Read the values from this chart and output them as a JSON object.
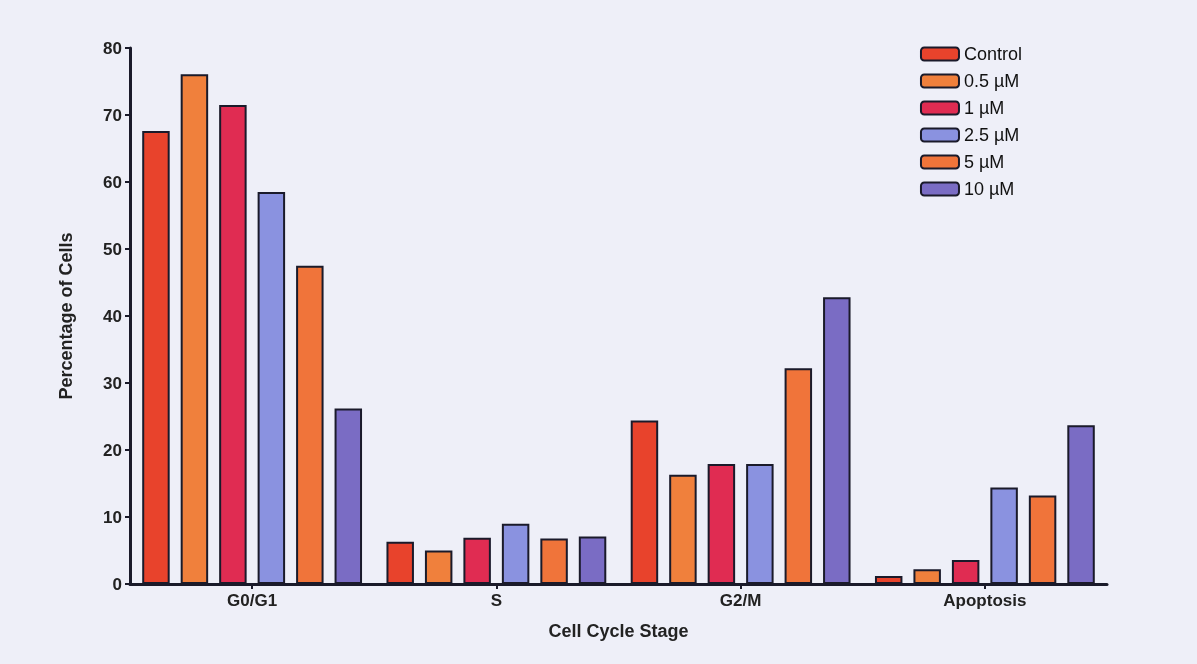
{
  "chart_data": {
    "type": "bar",
    "xlabel": "Cell Cycle Stage",
    "ylabel": "Percentage of Cells",
    "categories": [
      "G0/G1",
      "S",
      "G2/M",
      "Apoptosis"
    ],
    "series": [
      {
        "name": "Control",
        "color": "#e8432c",
        "values": [
          67.6,
          6.3,
          24.4,
          1.2
        ]
      },
      {
        "name": "0.5 µM",
        "color": "#f0803c",
        "values": [
          76.1,
          5.0,
          16.3,
          2.2
        ]
      },
      {
        "name": "1 µM",
        "color": "#e02c52",
        "values": [
          71.5,
          6.9,
          17.9,
          3.6
        ]
      },
      {
        "name": "2.5 µM",
        "color": "#8a92e0",
        "values": [
          58.5,
          9.0,
          17.9,
          14.4
        ]
      },
      {
        "name": "5 µM",
        "color": "#f0743a",
        "values": [
          47.5,
          6.8,
          32.2,
          13.2
        ]
      },
      {
        "name": "10 µM",
        "color": "#7a6cc4",
        "values": [
          26.2,
          7.1,
          42.8,
          23.7
        ]
      }
    ],
    "ylim": [
      0,
      80
    ],
    "yticks": [
      0,
      10,
      20,
      30,
      40,
      50,
      60,
      70,
      80
    ],
    "grid": false,
    "legend": "top right"
  }
}
